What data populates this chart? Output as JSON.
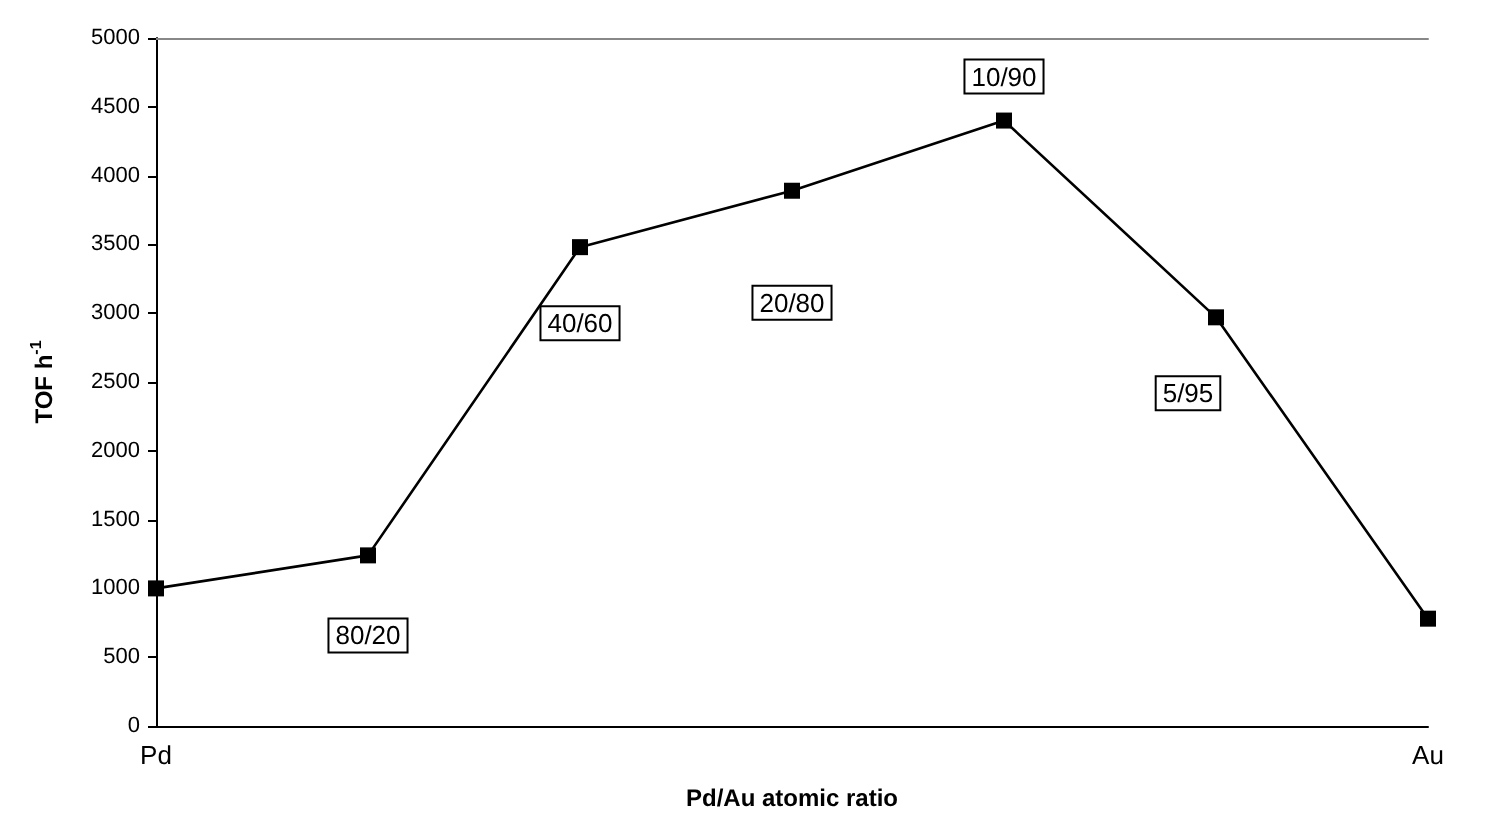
{
  "chart_data": {
    "type": "line",
    "xlabel": "Pd/Au atomic ratio",
    "ylabel": "TOF h$^{-1}$",
    "categories": [
      "Pd",
      null,
      null,
      null,
      null,
      null,
      "Au"
    ],
    "series": [
      {
        "color": "#000000",
        "values": [
          1000,
          1240,
          3480,
          3890,
          4400,
          2970,
          780
        ]
      }
    ],
    "ylim": [
      0,
      5000
    ],
    "yticks": [
      0,
      500,
      1000,
      1500,
      2000,
      2500,
      3000,
      3500,
      4000,
      4500,
      5000
    ],
    "marker": "square",
    "line_style": "solid",
    "annotations": [
      "80/20",
      "40/60",
      "20/80",
      "10/90",
      "5/95"
    ]
  }
}
